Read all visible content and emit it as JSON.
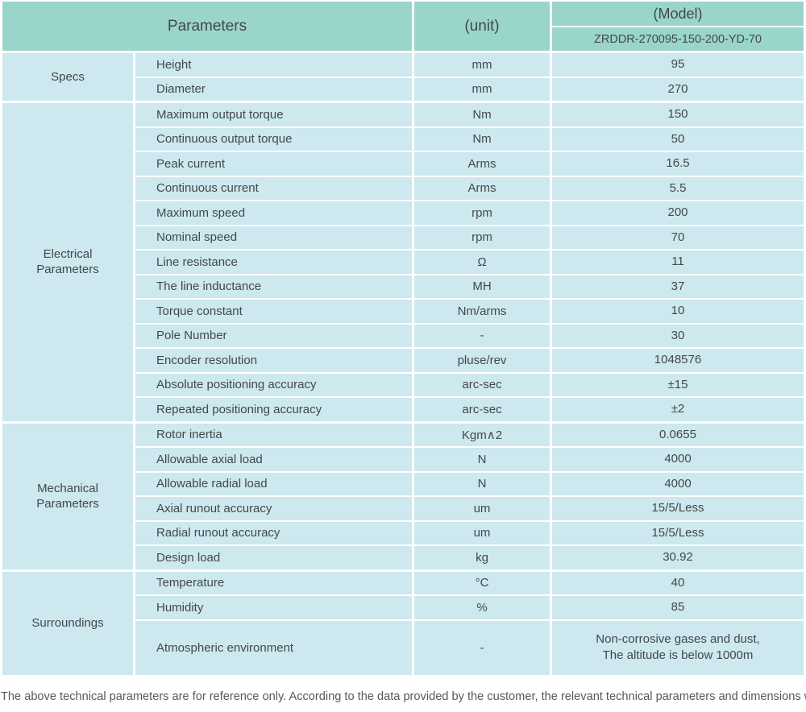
{
  "header": {
    "parameters_label": "Parameters",
    "unit_label": "(unit)",
    "model_label": "(Model)",
    "model_value": "ZRDDR-270095-150-200-YD-70"
  },
  "sections": [
    {
      "group": "Specs",
      "rows": [
        {
          "param": "Height",
          "unit": "mm",
          "value": "95"
        },
        {
          "param": "Diameter",
          "unit": "mm",
          "value": "270"
        }
      ]
    },
    {
      "group": "Electrical Parameters",
      "rows": [
        {
          "param": "Maximum output torque",
          "unit": "Nm",
          "value": "150"
        },
        {
          "param": "Continuous output torque",
          "unit": "Nm",
          "value": "50"
        },
        {
          "param": "Peak current",
          "unit": "Arms",
          "value": "16.5"
        },
        {
          "param": "Continuous current",
          "unit": "Arms",
          "value": "5.5"
        },
        {
          "param": "Maximum speed",
          "unit": "rpm",
          "value": "200"
        },
        {
          "param": "Nominal speed",
          "unit": "rpm",
          "value": "70"
        },
        {
          "param": "Line resistance",
          "unit": "Ω",
          "value": "11"
        },
        {
          "param": "The line inductance",
          "unit": "MH",
          "value": "37"
        },
        {
          "param": "Torque constant",
          "unit": "Nm/arms",
          "value": "10"
        },
        {
          "param": "Pole Number",
          "unit": "-",
          "value": "30"
        },
        {
          "param": "Encoder resolution",
          "unit": "pluse/rev",
          "value": "1048576"
        },
        {
          "param": "Absolute positioning accuracy",
          "unit": "arc-sec",
          "value": "±15"
        },
        {
          "param": "Repeated positioning accuracy",
          "unit": "arc-sec",
          "value": "±2"
        }
      ]
    },
    {
      "group": "Mechanical Parameters",
      "rows": [
        {
          "param": "Rotor inertia",
          "unit": "Kgm∧2",
          "value": "0.0655"
        },
        {
          "param": "Allowable axial load",
          "unit": "N",
          "value": "4000"
        },
        {
          "param": "Allowable radial load",
          "unit": "N",
          "value": "4000"
        },
        {
          "param": "Axial runout accuracy",
          "unit": "um",
          "value": "15/5/Less"
        },
        {
          "param": "Radial runout accuracy",
          "unit": "um",
          "value": "15/5/Less"
        },
        {
          "param": "Design load",
          "unit": "kg",
          "value": "30.92"
        }
      ]
    },
    {
      "group": "Surroundings",
      "rows": [
        {
          "param": "Temperature",
          "unit": "°C",
          "value": "40"
        },
        {
          "param": "Humidity",
          "unit": "%",
          "value": "85"
        },
        {
          "param": "Atmospheric environment",
          "unit": "-",
          "value": "Non-corrosive gases and dust,\nThe altitude is below 1000m",
          "tall": true
        }
      ]
    }
  ],
  "footer_note": "The above technical parameters are for reference only. According to the data provided by the customer, the relevant technical parameters and dimensions will be issued.",
  "colors": {
    "header_bg": "#9ad5cc",
    "cell_bg": "#cde8ee",
    "text": "#42484b"
  }
}
